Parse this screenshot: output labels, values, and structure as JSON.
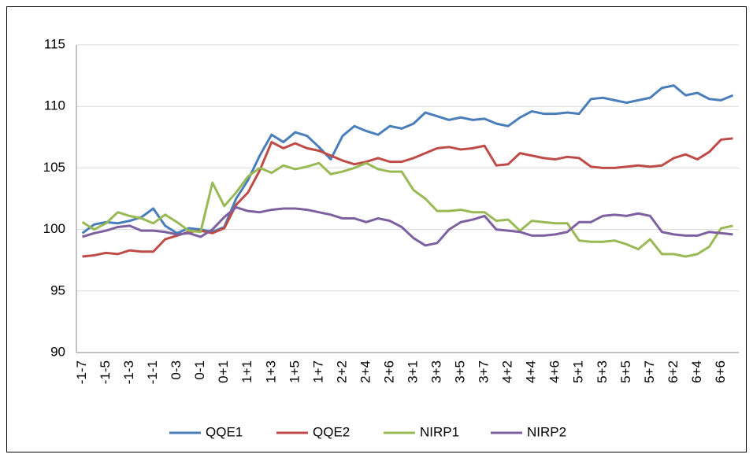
{
  "chart_data": {
    "type": "line",
    "categories": [
      "-1-7",
      null,
      "-1-5",
      null,
      "-1-3",
      null,
      "-1-1",
      null,
      "0-3",
      null,
      "0-1",
      null,
      "0+1",
      null,
      "1+1",
      null,
      "1+3",
      null,
      "1+5",
      null,
      "1+7",
      null,
      "2+2",
      null,
      "2+4",
      null,
      "2+6",
      null,
      "3+1",
      null,
      "3+3",
      null,
      "3+5",
      null,
      "3+7",
      null,
      "4+2",
      null,
      "4+4",
      null,
      "4+6",
      null,
      "5+1",
      null,
      "5+3",
      null,
      "5+5",
      null,
      "5+7",
      null,
      "6+2",
      null,
      "6+4",
      null,
      "6+6",
      null
    ],
    "series": [
      {
        "name": "QQE1",
        "color": "#4a7ebb",
        "values": [
          99.7,
          100.4,
          100.6,
          100.5,
          100.7,
          101.0,
          101.7,
          100.3,
          99.7,
          100.1,
          100.0,
          99.8,
          100.2,
          102.5,
          104.0,
          106.0,
          107.7,
          107.1,
          107.9,
          107.6,
          106.7,
          105.7,
          107.6,
          108.4,
          108.0,
          107.7,
          108.4,
          108.2,
          108.6,
          109.5,
          109.2,
          108.9,
          109.1,
          108.9,
          109.0,
          108.6,
          108.4,
          109.1,
          109.6,
          109.4,
          109.4,
          109.5,
          109.4,
          110.6,
          110.7,
          110.5,
          110.3,
          110.5,
          110.7,
          111.5,
          111.7,
          110.9,
          111.1,
          110.6,
          110.5,
          110.9
        ]
      },
      {
        "name": "QQE2",
        "color": "#be4b48",
        "values": [
          97.8,
          97.9,
          98.1,
          98.0,
          98.3,
          98.2,
          98.2,
          99.2,
          99.5,
          99.8,
          99.9,
          99.7,
          100.1,
          102.0,
          103.0,
          104.8,
          107.1,
          106.6,
          107.0,
          106.6,
          106.4,
          106.0,
          105.6,
          105.3,
          105.5,
          105.8,
          105.5,
          105.5,
          105.8,
          106.2,
          106.6,
          106.7,
          106.5,
          106.6,
          106.8,
          105.2,
          105.3,
          106.2,
          106.0,
          105.8,
          105.7,
          105.9,
          105.8,
          105.1,
          105.0,
          105.0,
          105.1,
          105.2,
          105.1,
          105.2,
          105.8,
          106.1,
          105.7,
          106.3,
          107.3,
          107.4
        ]
      },
      {
        "name": "NIRP1",
        "color": "#98b954",
        "values": [
          100.6,
          100.0,
          100.5,
          101.4,
          101.1,
          100.9,
          100.5,
          101.2,
          100.6,
          99.9,
          99.8,
          103.8,
          101.9,
          103.0,
          104.3,
          105.0,
          104.6,
          105.2,
          104.9,
          105.1,
          105.4,
          104.5,
          104.7,
          105.0,
          105.4,
          104.9,
          104.7,
          104.7,
          103.2,
          102.5,
          101.5,
          101.5,
          101.6,
          101.4,
          101.4,
          100.7,
          100.8,
          99.9,
          100.7,
          100.6,
          100.5,
          100.5,
          99.1,
          99.0,
          99.0,
          99.1,
          98.8,
          98.4,
          99.2,
          98.0,
          98.0,
          97.8,
          98.0,
          98.6,
          100.1,
          100.3
        ]
      },
      {
        "name": "NIRP2",
        "color": "#7d60a0",
        "values": [
          99.4,
          99.7,
          99.9,
          100.2,
          100.3,
          99.9,
          99.9,
          99.8,
          99.6,
          99.7,
          99.4,
          100.0,
          101.0,
          101.8,
          101.5,
          101.4,
          101.6,
          101.7,
          101.7,
          101.6,
          101.4,
          101.2,
          100.9,
          100.9,
          100.6,
          100.9,
          100.7,
          100.2,
          99.3,
          98.7,
          98.9,
          100.0,
          100.6,
          100.8,
          101.1,
          100.0,
          99.9,
          99.8,
          99.5,
          99.5,
          99.6,
          99.8,
          100.6,
          100.6,
          101.1,
          101.2,
          101.1,
          101.3,
          101.1,
          99.8,
          99.6,
          99.5,
          99.5,
          99.8,
          99.7,
          99.6
        ]
      }
    ],
    "ylim": [
      90,
      115
    ],
    "yticks": [
      90,
      95,
      100,
      105,
      110,
      115
    ],
    "grid": true,
    "legend": "bottom"
  }
}
